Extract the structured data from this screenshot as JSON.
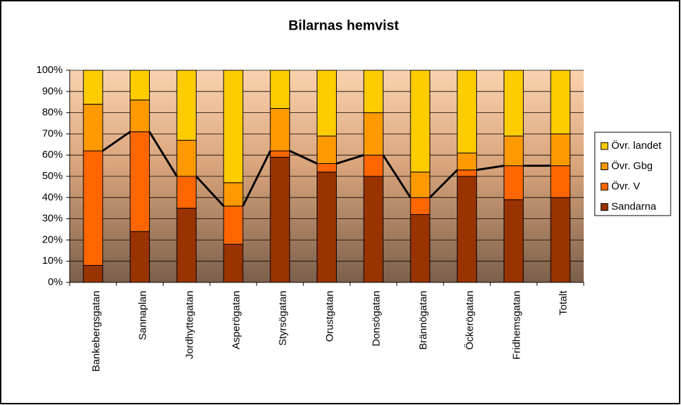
{
  "chart_data": {
    "type": "stacked_bar",
    "title": "Bilarnas hemvist",
    "categories": [
      "Bankebergsgatan",
      "Sannaplan",
      "Jordhyttegatan",
      "Asperögatan",
      "Styrsögatan",
      "Orustgatan",
      "Donsögatan",
      "Brännögatan",
      "Öckerögatan",
      "Fridhemsgatan",
      "Totalt"
    ],
    "series": [
      {
        "name": "Sandarna",
        "color": "#993300",
        "values": [
          8,
          24,
          35,
          18,
          59,
          52,
          50,
          32,
          50,
          39,
          40
        ]
      },
      {
        "name": "Övr. V",
        "color": "#ff6600",
        "values": [
          54,
          47,
          15,
          18,
          3,
          4,
          10,
          8,
          3,
          16,
          15
        ]
      },
      {
        "name": "Övr. Gbg",
        "color": "#ff9900",
        "values": [
          22,
          15,
          17,
          11,
          20,
          13,
          20,
          12,
          8,
          14,
          15
        ]
      },
      {
        "name": "Övr. landet",
        "color": "#ffcc00",
        "values": [
          16,
          14,
          33,
          53,
          18,
          31,
          20,
          48,
          39,
          31,
          30
        ]
      }
    ],
    "ylim": [
      0,
      100
    ],
    "yticks": [
      {
        "value": 0,
        "label": "0%"
      },
      {
        "value": 10,
        "label": "10%"
      },
      {
        "value": 20,
        "label": "20%"
      },
      {
        "value": 30,
        "label": "30%"
      },
      {
        "value": 40,
        "label": "40%"
      },
      {
        "value": 50,
        "label": "50%"
      },
      {
        "value": 60,
        "label": "60%"
      },
      {
        "value": 70,
        "label": "70%"
      },
      {
        "value": 80,
        "label": "80%"
      },
      {
        "value": 90,
        "label": "90%"
      },
      {
        "value": 100,
        "label": "100%"
      }
    ],
    "grid": true,
    "series_lines": true,
    "legend": "right"
  }
}
